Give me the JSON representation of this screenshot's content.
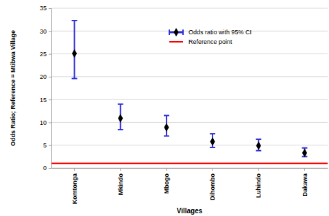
{
  "chart_data": {
    "type": "scatter",
    "x_label": "Villages",
    "y_label": "Odds Ratio; Reference = Mtibwa Village",
    "categories": [
      "Komtonga",
      "Mkindo",
      "Mbogo",
      "Dihombo",
      "Luhindo",
      "Dakawa"
    ],
    "series": [
      {
        "name": "Odds ratio with 95% CI",
        "color": "#000000",
        "marker": "diamond",
        "values": [
          25.1,
          10.9,
          8.9,
          5.8,
          4.9,
          3.3
        ],
        "ci_lower": [
          19.6,
          8.4,
          7.0,
          4.5,
          3.8,
          2.5
        ],
        "ci_upper": [
          32.3,
          14.0,
          11.5,
          7.5,
          6.3,
          4.4
        ]
      }
    ],
    "reference": {
      "name": "Reference point",
      "value": 1,
      "color": "#ff0000"
    },
    "ylim": [
      0,
      35
    ],
    "yticks": [
      0,
      5,
      10,
      15,
      20,
      25,
      30,
      35
    ],
    "grid": true,
    "legend": "top-right"
  }
}
